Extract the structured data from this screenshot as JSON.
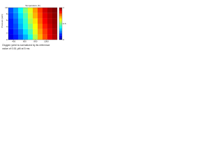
{
  "chart_data": {
    "type": "heatmap",
    "xlabel": "Temperature (K)",
    "ylabel": "Pressure (atm)",
    "x": [
      345,
      435,
      525,
      615,
      705,
      795,
      885,
      975,
      1065,
      1155
    ],
    "y": [
      0.83,
      2.5,
      4.17,
      5.83,
      7.5,
      9.17
    ],
    "z": [
      [
        0.1,
        0.15,
        0.22,
        0.3,
        0.4,
        0.55,
        0.7,
        0.8,
        0.9,
        0.95
      ],
      [
        0.12,
        0.18,
        0.25,
        0.35,
        0.45,
        0.6,
        0.72,
        0.82,
        0.9,
        0.96
      ],
      [
        0.15,
        0.2,
        0.3,
        0.4,
        0.5,
        0.62,
        0.75,
        0.85,
        0.92,
        0.97
      ],
      [
        0.15,
        0.22,
        0.32,
        0.42,
        0.55,
        0.65,
        0.78,
        0.88,
        0.94,
        0.98
      ],
      [
        0.18,
        0.25,
        0.35,
        0.45,
        0.58,
        0.7,
        0.8,
        0.9,
        0.95,
        0.99
      ],
      [
        0.2,
        0.28,
        0.38,
        0.5,
        0.6,
        0.72,
        0.82,
        0.92,
        0.97,
        1.0
      ]
    ],
    "xlim": [
      300,
      1200
    ],
    "xticks": [
      400,
      600,
      800,
      1000
    ],
    "ylim": [
      0,
      10
    ],
    "yticks": [
      0,
      2,
      4,
      6,
      8,
      10
    ],
    "clim": [
      0,
      1
    ],
    "cticks": [
      0,
      0.5,
      1
    ],
    "colormap": "jet",
    "caption": [
      "Oxygen yield is normalized by its reference",
      "value of 0.51 μM at 5 ms"
    ]
  }
}
